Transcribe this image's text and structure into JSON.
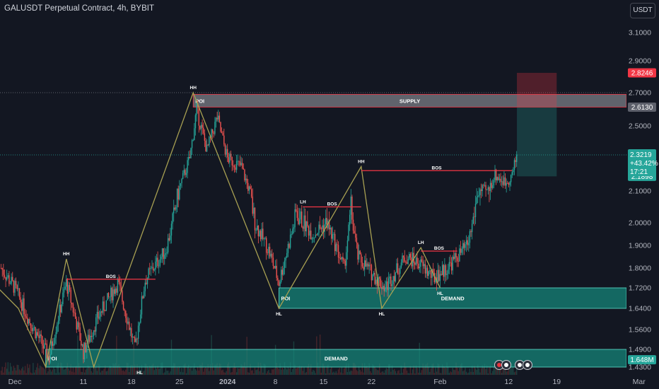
{
  "header": {
    "title": "GALUSDT Perpetual Contract, 4h, BYBIT",
    "currency_button": "USDT"
  },
  "colors": {
    "bg": "#131722",
    "up": "#26a69a",
    "down": "#ef5350",
    "zigzag": "#a8a052",
    "bos": "#f23645",
    "demand": "#0f6e63",
    "supply": "#7a7d85"
  },
  "chart_data": {
    "type": "candlestick",
    "symbol": "GALUSDT",
    "timeframe": "4h",
    "exchange": "BYBIT",
    "ylim": [
      1.4,
      3.2
    ],
    "y_ticks": [
      3.1,
      2.9,
      2.7,
      2.5,
      2.3,
      2.1,
      2.0,
      1.9,
      1.8,
      1.72,
      1.64,
      1.56,
      1.49,
      1.43
    ],
    "y_tick_labels": [
      "3.1000",
      "2.9000",
      "2.7000",
      "2.5000",
      "2.3000",
      "2.1000",
      "2.0000",
      "1.9000",
      "1.8000",
      "1.7200",
      "1.6400",
      "1.5600",
      "1.4900",
      "1.4300"
    ],
    "x_ticks": [
      {
        "label": "Dec",
        "day": 0
      },
      {
        "label": "11",
        "day": 10
      },
      {
        "label": "18",
        "day": 17
      },
      {
        "label": "25",
        "day": 24
      },
      {
        "label": "2024",
        "day": 31
      },
      {
        "label": "8",
        "day": 38
      },
      {
        "label": "15",
        "day": 45
      },
      {
        "label": "22",
        "day": 52
      },
      {
        "label": "Feb",
        "day": 62
      },
      {
        "label": "12",
        "day": 72
      },
      {
        "label": "19",
        "day": 79
      },
      {
        "label": "Mar",
        "day": 91
      }
    ],
    "price_path": [
      {
        "day": -2,
        "price": 1.8
      },
      {
        "day": 0,
        "price": 1.72
      },
      {
        "day": 2,
        "price": 1.6
      },
      {
        "day": 5,
        "price": 1.46
      },
      {
        "day": 7.5,
        "price": 1.74
      },
      {
        "day": 10,
        "price": 1.48
      },
      {
        "day": 12,
        "price": 1.6
      },
      {
        "day": 15,
        "price": 1.74
      },
      {
        "day": 17.5,
        "price": 1.49
      },
      {
        "day": 19,
        "price": 1.75
      },
      {
        "day": 22,
        "price": 1.88
      },
      {
        "day": 25.5,
        "price": 2.3
      },
      {
        "day": 26.5,
        "price": 2.6
      },
      {
        "day": 28,
        "price": 2.35
      },
      {
        "day": 29.5,
        "price": 2.55
      },
      {
        "day": 31,
        "price": 2.3
      },
      {
        "day": 33,
        "price": 2.25
      },
      {
        "day": 35,
        "price": 2.0
      },
      {
        "day": 37,
        "price": 1.88
      },
      {
        "day": 38.5,
        "price": 1.74
      },
      {
        "day": 41,
        "price": 2.03
      },
      {
        "day": 43.5,
        "price": 1.95
      },
      {
        "day": 45.5,
        "price": 2.0
      },
      {
        "day": 48,
        "price": 1.8
      },
      {
        "day": 49,
        "price": 2.05
      },
      {
        "day": 50,
        "price": 1.85
      },
      {
        "day": 52,
        "price": 1.78
      },
      {
        "day": 54,
        "price": 1.72
      },
      {
        "day": 57,
        "price": 1.85
      },
      {
        "day": 59,
        "price": 1.82
      },
      {
        "day": 61,
        "price": 1.76
      },
      {
        "day": 63,
        "price": 1.8
      },
      {
        "day": 66,
        "price": 1.9
      },
      {
        "day": 67.5,
        "price": 2.1
      },
      {
        "day": 69,
        "price": 2.1
      },
      {
        "day": 70,
        "price": 2.2
      },
      {
        "day": 71.5,
        "price": 2.15
      },
      {
        "day": 72.5,
        "price": 2.2
      },
      {
        "day": 73.2,
        "price": 2.32
      }
    ],
    "zigzag": [
      {
        "day": -6,
        "price": 1.82
      },
      {
        "day": 0.5,
        "price": 1.64
      },
      {
        "day": 4.5,
        "price": 1.43
      },
      {
        "day": 7.5,
        "price": 1.84
      },
      {
        "day": 11.5,
        "price": 1.43
      },
      {
        "day": 26,
        "price": 2.7
      },
      {
        "day": 38.5,
        "price": 1.64
      },
      {
        "day": 50.5,
        "price": 2.25
      },
      {
        "day": 53.5,
        "price": 1.64
      },
      {
        "day": 59.2,
        "price": 1.89
      },
      {
        "day": 62,
        "price": 1.72
      }
    ],
    "swing_labels": [
      {
        "text": "HH",
        "day": 7.5,
        "price": 1.84,
        "pos": "above"
      },
      {
        "text": "HL",
        "day": 18.2,
        "price": 1.43,
        "pos": "below"
      },
      {
        "text": "HH",
        "day": 26,
        "price": 2.7,
        "pos": "above"
      },
      {
        "text": "HL",
        "day": 38.5,
        "price": 1.64,
        "pos": "below"
      },
      {
        "text": "LH",
        "day": 42,
        "price": 2.05,
        "pos": "above"
      },
      {
        "text": "HH",
        "day": 50.5,
        "price": 2.25,
        "pos": "above"
      },
      {
        "text": "HL",
        "day": 53.5,
        "price": 1.64,
        "pos": "below"
      },
      {
        "text": "LH",
        "day": 59.2,
        "price": 1.89,
        "pos": "above"
      },
      {
        "text": "HL",
        "day": 62,
        "price": 1.72,
        "pos": "below"
      }
    ],
    "bos_lines": [
      {
        "label": "BOS",
        "day_from": 7.5,
        "day_to": 20.5,
        "price": 1.755
      },
      {
        "label": "BOS",
        "day_from": 42,
        "day_to": 50.5,
        "price": 2.05
      },
      {
        "label": "BOS",
        "day_from": 50.5,
        "day_to": 72.5,
        "price": 2.225
      },
      {
        "label": "BOS",
        "day_from": 59.2,
        "day_to": 64.5,
        "price": 1.875
      }
    ],
    "zones": [
      {
        "type": "supply",
        "label": "SUPPLY",
        "tag": "POI",
        "day_from": 26,
        "price_top": 2.69,
        "price_bottom": 2.613
      },
      {
        "type": "demand",
        "label": "DEMAND",
        "tag": "POI",
        "day_from": 38.5,
        "price_top": 1.72,
        "price_bottom": 1.64
      },
      {
        "type": "demand",
        "label": "DEMAND",
        "tag": "POI",
        "day_from": 4.5,
        "price_top": 1.49,
        "price_bottom": 1.43
      }
    ],
    "position": {
      "day_from": 73.2,
      "day_to": 79,
      "entry": 2.1898,
      "target": 2.613,
      "stop": 2.8246
    },
    "price_tags": [
      {
        "value": "2.8246",
        "price": 2.8246,
        "color": "#f23645"
      },
      {
        "value": "2.6130",
        "price": 2.613,
        "color": "#5d606b"
      },
      {
        "value": "2.1898",
        "price": 2.1898,
        "color": "#26a69a"
      },
      {
        "value": "1.648M",
        "price": 1.455,
        "color": "#26a69a"
      }
    ],
    "last_price": {
      "price": "2.3219",
      "change": "+43.42%",
      "countdown": "17:21"
    },
    "hline_dotted": [
      {
        "price": 2.7,
        "color": "#7a7d85"
      },
      {
        "price": 2.3219,
        "color": "#26a69a"
      }
    ]
  }
}
